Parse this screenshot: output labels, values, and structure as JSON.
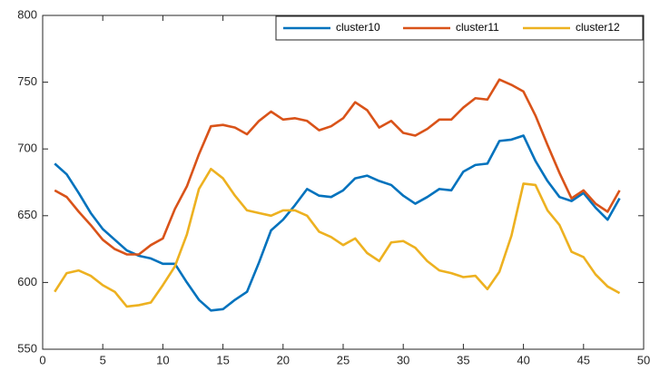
{
  "chart_data": {
    "type": "line",
    "x": [
      1,
      2,
      3,
      4,
      5,
      6,
      7,
      8,
      9,
      10,
      11,
      12,
      13,
      14,
      15,
      16,
      17,
      18,
      19,
      20,
      21,
      22,
      23,
      24,
      25,
      26,
      27,
      28,
      29,
      30,
      31,
      32,
      33,
      34,
      35,
      36,
      37,
      38,
      39,
      40,
      41,
      42,
      43,
      44,
      45,
      46,
      47,
      48
    ],
    "series": [
      {
        "name": "cluster10",
        "color": "#0072bd",
        "values": [
          689,
          681,
          667,
          652,
          640,
          632,
          624,
          620,
          618,
          614,
          614,
          600,
          587,
          579,
          580,
          587,
          593,
          615,
          639,
          647,
          658,
          670,
          665,
          664,
          669,
          678,
          680,
          676,
          673,
          665,
          659,
          664,
          670,
          669,
          683,
          688,
          689,
          706,
          707,
          710,
          691,
          676,
          664,
          661,
          667,
          656,
          647,
          663
        ]
      },
      {
        "name": "cluster11",
        "color": "#d95319",
        "values": [
          669,
          664,
          653,
          643,
          632,
          625,
          621,
          621,
          628,
          633,
          655,
          672,
          696,
          717,
          718,
          716,
          711,
          721,
          728,
          722,
          723,
          721,
          714,
          717,
          723,
          735,
          729,
          716,
          721,
          712,
          710,
          715,
          722,
          722,
          731,
          738,
          737,
          752,
          748,
          743,
          725,
          703,
          682,
          663,
          669,
          659,
          653,
          669
        ]
      },
      {
        "name": "cluster12",
        "color": "#edb120",
        "values": [
          593,
          607,
          609,
          605,
          598,
          593,
          582,
          583,
          585,
          598,
          612,
          636,
          670,
          685,
          678,
          665,
          654,
          652,
          650,
          654,
          654,
          650,
          638,
          634,
          628,
          633,
          622,
          616,
          630,
          631,
          626,
          616,
          609,
          607,
          604,
          605,
          595,
          608,
          635,
          674,
          673,
          654,
          643,
          623,
          619,
          606,
          597,
          592
        ]
      }
    ],
    "xlim": [
      0,
      50
    ],
    "xticks": [
      0,
      5,
      10,
      15,
      20,
      25,
      30,
      35,
      40,
      45,
      50
    ],
    "ylim": [
      550,
      800
    ],
    "yticks": [
      550,
      600,
      650,
      700,
      750,
      800
    ],
    "legend": "top-right"
  }
}
